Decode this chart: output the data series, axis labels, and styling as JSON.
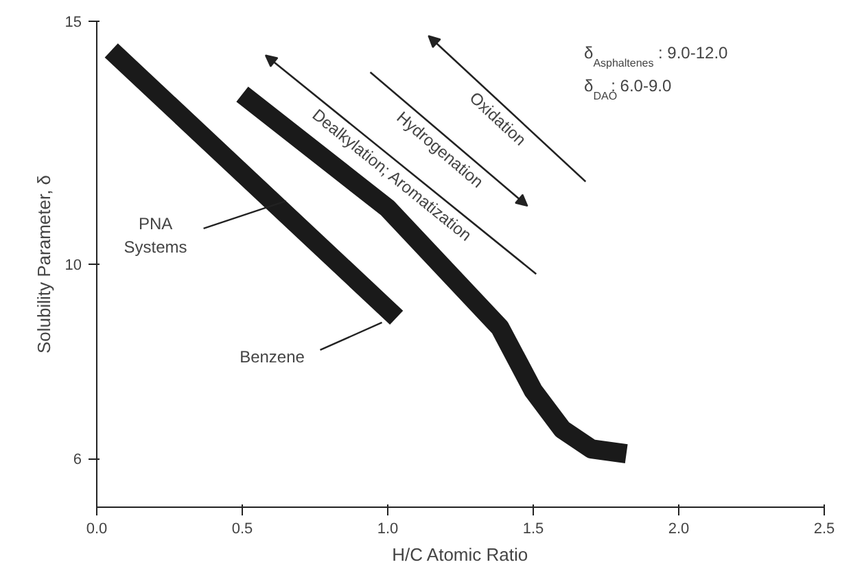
{
  "chart_data": {
    "type": "line",
    "xlabel": "H/C Atomic Ratio",
    "ylabel": "Solubility Parameter, δ",
    "series": [
      {
        "color": "#1a1a1a",
        "x": [
          0.05,
          1.03
        ],
        "values": [
          14.4,
          8.9
        ]
      },
      {
        "color": "#1a1a1a",
        "x": [
          0.5,
          1.0,
          1.385,
          1.5,
          1.6,
          1.7,
          1.82
        ],
        "values": [
          13.5,
          11.15,
          8.7,
          7.4,
          6.6,
          6.2,
          6.1
        ]
      }
    ],
    "xlim": [
      0,
      2.5
    ],
    "ylim": [
      5,
      15
    ],
    "xticks": [
      {
        "value": 0,
        "label": "0.0"
      },
      0.5,
      {
        "value": 1,
        "label": "1.0"
      },
      1.5,
      {
        "value": 2,
        "label": "2.0"
      },
      2.5
    ],
    "yticks": [
      6,
      10,
      15
    ],
    "grid": false,
    "marker": "none",
    "line_style": "solid",
    "annotations": [
      {
        "text": "PNA Systems",
        "x": 0.65,
        "y": 11.3
      },
      {
        "text": "Benzene",
        "x": 0.98,
        "y": 8.8
      },
      "Oxidation",
      "Hydrogenation",
      "Dealkylation; Aromatization",
      "δ$_{Asphaltenes}$: 9.0-12.0",
      "δ$_{DAO}$: 6.0-9.0"
    ]
  }
}
